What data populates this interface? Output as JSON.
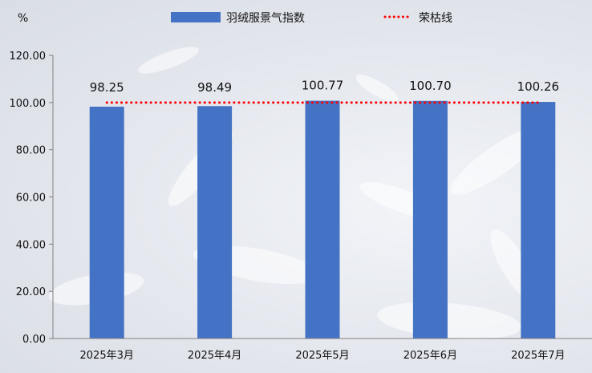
{
  "chart_data": {
    "type": "bar",
    "unit_label": "%",
    "categories": [
      "2025年3月",
      "2025年4月",
      "2025年5月",
      "2025年6月",
      "2025年7月"
    ],
    "series": [
      {
        "name": "羽绒服景气指数",
        "values": [
          98.25,
          98.49,
          100.77,
          100.7,
          100.26
        ],
        "color": "#4472C4",
        "kind": "bar"
      },
      {
        "name": "荣枯线",
        "values": [
          100,
          100,
          100,
          100,
          100
        ],
        "color": "#FF0000",
        "kind": "dotted-line"
      }
    ],
    "data_labels": [
      "98.25",
      "98.49",
      "100.77",
      "100.70",
      "100.26"
    ],
    "ylim": [
      0,
      120
    ],
    "yticks": [
      "0.00",
      "20.00",
      "40.00",
      "60.00",
      "80.00",
      "100.00",
      "120.00"
    ],
    "legend_position": "top",
    "grid": false
  }
}
